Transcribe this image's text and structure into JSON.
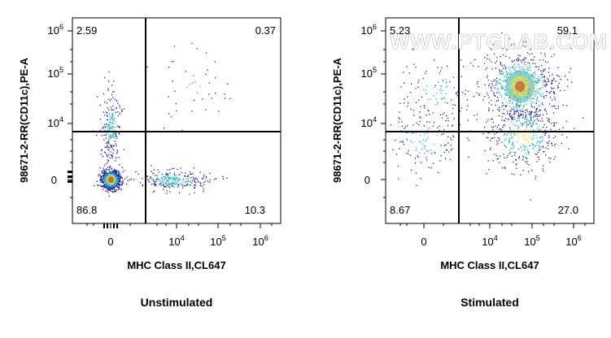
{
  "watermark": "WWW.PTGLAB.COM",
  "colors": {
    "density_low": "#1a1aa8",
    "density_mid": "#27b2c8",
    "density_high": "#f2e63a",
    "density_peak": "#d62a1f",
    "gate_line": "#000000"
  },
  "chart_data": [
    {
      "type": "scatter",
      "subtype": "flow-cytometry density dot plot",
      "title": "Unstimulated",
      "xlabel": "MHC Class II,CL647",
      "ylabel": "98671-2-RR(CD11c),PE-A",
      "x_scale": "biexponential",
      "y_scale": "biexponential",
      "x_ticks": [
        {
          "base": "0",
          "exp": ""
        },
        {
          "base": "10",
          "exp": "4"
        },
        {
          "base": "10",
          "exp": "5"
        },
        {
          "base": "10",
          "exp": "6"
        }
      ],
      "y_ticks": [
        {
          "base": "0",
          "exp": ""
        },
        {
          "base": "10",
          "exp": "4"
        },
        {
          "base": "10",
          "exp": "5"
        },
        {
          "base": "10",
          "exp": "6"
        }
      ],
      "quadrant_gate": {
        "x": 3000,
        "y": 7000
      },
      "quadrants": {
        "upper_left": "2.59",
        "upper_right": "0.37",
        "lower_left": "86.8",
        "lower_right": "10.3"
      },
      "populations": [
        {
          "name": "",
          "share": 0.62,
          "x_center": 0,
          "y_center": 0,
          "x_spread": "narrow",
          "y_spread": "narrow"
        },
        {
          "name": "",
          "share": 0.16,
          "x_center": 0,
          "y_center": 3000,
          "x_spread": "narrow",
          "y_spread": "wide"
        },
        {
          "name": "",
          "share": 0.19,
          "x_center": 8000,
          "y_center": 0,
          "x_spread": "wide",
          "y_spread": "narrow"
        },
        {
          "name": "",
          "share": 0.03,
          "x_center": 20000,
          "y_center": 30000,
          "x_spread": "wide",
          "y_spread": "wide"
        }
      ]
    },
    {
      "type": "scatter",
      "subtype": "flow-cytometry density dot plot",
      "title": "Stimulated",
      "xlabel": "MHC Class II,CL647",
      "ylabel": "98671-2-RR(CD11c),PE-A",
      "x_scale": "biexponential",
      "y_scale": "biexponential",
      "x_ticks": [
        {
          "base": "0",
          "exp": ""
        },
        {
          "base": "10",
          "exp": "4"
        },
        {
          "base": "10",
          "exp": "5"
        },
        {
          "base": "10",
          "exp": "6"
        }
      ],
      "y_ticks": [
        {
          "base": "0",
          "exp": ""
        },
        {
          "base": "10",
          "exp": "4"
        },
        {
          "base": "10",
          "exp": "5"
        },
        {
          "base": "10",
          "exp": "6"
        }
      ],
      "quadrant_gate": {
        "x": 3000,
        "y": 7000
      },
      "quadrants": {
        "upper_left": "5.23",
        "upper_right": "59.1",
        "lower_left": "8.67",
        "lower_right": "27.0"
      },
      "populations": [
        {
          "name": "",
          "share": 0.52,
          "x_center": 50000,
          "y_center": 25000,
          "x_spread": "wide",
          "y_spread": "wide"
        },
        {
          "name": "",
          "share": 0.3,
          "x_center": 60000,
          "y_center": 2000,
          "x_spread": "wide",
          "y_spread": "wide"
        },
        {
          "name": "",
          "share": 0.1,
          "x_center": 0,
          "y_center": 1500,
          "x_spread": "wide",
          "y_spread": "wide"
        },
        {
          "name": "",
          "share": 0.08,
          "x_center": 500,
          "y_center": 20000,
          "x_spread": "wide",
          "y_spread": "wide"
        }
      ]
    }
  ]
}
